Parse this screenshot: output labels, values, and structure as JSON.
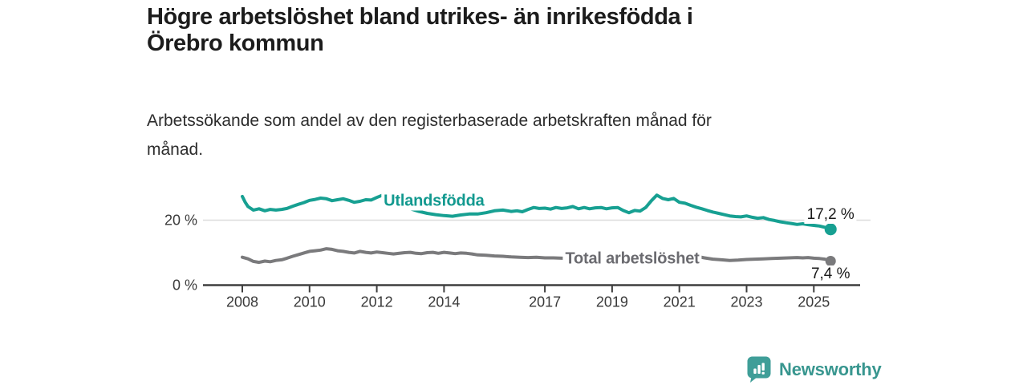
{
  "title": {
    "lines": [
      "Högre arbetslöshet bland utrikes- än inrikesfödda i",
      "Örebro kommun"
    ]
  },
  "subtitle": {
    "lines": [
      "Arbetssökande som andel av den registerbaserade arbetskraften månad för",
      "månad."
    ]
  },
  "footer": {
    "brand": "Newsworthy",
    "logo_icon": "bar-chart-speech-bubble-icon"
  },
  "colors": {
    "accent_teal": "#17a092",
    "line_gray": "#7a7a7c",
    "label_gray": "#6b6b70",
    "title_text": "#1c1c1c",
    "subtitle_text": "#2d2d2d",
    "axis_text": "#3a3a3a",
    "gridline": "#dcdcdc",
    "axis_line": "#3f3f3f",
    "logo_teal": "#3f9e98",
    "wordmark_teal": "#38968f",
    "background": "#ffffff"
  },
  "chart_data": {
    "type": "line",
    "x_unit": "decimal_year",
    "xlim": [
      2008.0,
      2025.58
    ],
    "ylim": [
      0,
      29
    ],
    "x_ticks": [
      2008,
      2010,
      2012,
      2014,
      2017,
      2019,
      2021,
      2023,
      2025
    ],
    "y_axis": {
      "ticks": [
        {
          "value": 0,
          "label": "0 %"
        },
        {
          "value": 20,
          "label": "20 %"
        }
      ]
    },
    "grid": "horizontal-at-20-only",
    "legend_position": "inline-labels-on-lines",
    "series": [
      {
        "name": "Utlandsfödda",
        "color": "#17a092",
        "label_color": "#12998f",
        "label_anchor": {
          "t": 2013.7,
          "value": 25.8
        },
        "end_label": "17,2 %",
        "end_value": 17.2,
        "end_label_placement": "above",
        "points": [
          [
            2008.0,
            27.3
          ],
          [
            2008.08,
            25.6
          ],
          [
            2008.17,
            24.2
          ],
          [
            2008.33,
            23.1
          ],
          [
            2008.5,
            23.5
          ],
          [
            2008.67,
            22.9
          ],
          [
            2008.83,
            23.3
          ],
          [
            2009.0,
            23.1
          ],
          [
            2009.17,
            23.3
          ],
          [
            2009.33,
            23.6
          ],
          [
            2009.5,
            24.3
          ],
          [
            2009.67,
            24.9
          ],
          [
            2009.83,
            25.4
          ],
          [
            2010.0,
            26.1
          ],
          [
            2010.17,
            26.4
          ],
          [
            2010.33,
            26.8
          ],
          [
            2010.5,
            26.6
          ],
          [
            2010.67,
            26.0
          ],
          [
            2010.83,
            26.3
          ],
          [
            2011.0,
            26.6
          ],
          [
            2011.17,
            26.1
          ],
          [
            2011.33,
            25.5
          ],
          [
            2011.5,
            25.8
          ],
          [
            2011.67,
            26.3
          ],
          [
            2011.83,
            26.2
          ],
          [
            2012.0,
            27.0
          ],
          [
            2012.17,
            27.7
          ],
          [
            2012.33,
            27.3
          ],
          [
            2012.5,
            26.4
          ],
          [
            2012.67,
            25.3
          ],
          [
            2012.83,
            24.3
          ],
          [
            2013.0,
            23.5
          ],
          [
            2013.25,
            22.7
          ],
          [
            2013.5,
            22.1
          ],
          [
            2013.75,
            21.7
          ],
          [
            2014.0,
            21.4
          ],
          [
            2014.25,
            21.2
          ],
          [
            2014.5,
            21.6
          ],
          [
            2014.75,
            21.9
          ],
          [
            2015.0,
            21.9
          ],
          [
            2015.25,
            22.3
          ],
          [
            2015.5,
            22.9
          ],
          [
            2015.75,
            23.1
          ],
          [
            2016.0,
            22.7
          ],
          [
            2016.17,
            22.9
          ],
          [
            2016.33,
            22.6
          ],
          [
            2016.5,
            23.3
          ],
          [
            2016.67,
            23.9
          ],
          [
            2016.83,
            23.6
          ],
          [
            2017.0,
            23.7
          ],
          [
            2017.17,
            23.4
          ],
          [
            2017.33,
            23.9
          ],
          [
            2017.5,
            23.6
          ],
          [
            2017.67,
            23.8
          ],
          [
            2017.83,
            24.2
          ],
          [
            2018.0,
            23.5
          ],
          [
            2018.17,
            23.9
          ],
          [
            2018.33,
            23.5
          ],
          [
            2018.5,
            23.8
          ],
          [
            2018.67,
            23.9
          ],
          [
            2018.83,
            23.5
          ],
          [
            2019.0,
            23.8
          ],
          [
            2019.17,
            23.9
          ],
          [
            2019.33,
            23.0
          ],
          [
            2019.5,
            22.3
          ],
          [
            2019.67,
            23.0
          ],
          [
            2019.83,
            22.8
          ],
          [
            2020.0,
            23.9
          ],
          [
            2020.17,
            26.0
          ],
          [
            2020.33,
            27.7
          ],
          [
            2020.5,
            26.7
          ],
          [
            2020.67,
            26.3
          ],
          [
            2020.83,
            26.7
          ],
          [
            2021.0,
            25.5
          ],
          [
            2021.17,
            25.2
          ],
          [
            2021.33,
            24.6
          ],
          [
            2021.5,
            24.0
          ],
          [
            2021.67,
            23.5
          ],
          [
            2021.83,
            23.0
          ],
          [
            2022.0,
            22.5
          ],
          [
            2022.17,
            22.1
          ],
          [
            2022.33,
            21.7
          ],
          [
            2022.5,
            21.3
          ],
          [
            2022.67,
            21.1
          ],
          [
            2022.83,
            21.0
          ],
          [
            2023.0,
            21.3
          ],
          [
            2023.17,
            20.9
          ],
          [
            2023.33,
            20.6
          ],
          [
            2023.5,
            20.8
          ],
          [
            2023.67,
            20.2
          ],
          [
            2023.83,
            19.9
          ],
          [
            2024.0,
            19.5
          ],
          [
            2024.17,
            19.2
          ],
          [
            2024.33,
            19.0
          ],
          [
            2024.5,
            18.7
          ],
          [
            2024.67,
            18.9
          ],
          [
            2024.83,
            18.6
          ],
          [
            2025.0,
            18.4
          ],
          [
            2025.17,
            18.2
          ],
          [
            2025.33,
            17.8
          ],
          [
            2025.5,
            17.2
          ]
        ]
      },
      {
        "name": "Total arbetslöshet",
        "color": "#7a7a7c",
        "label_color": "#6b6b70",
        "label_anchor": {
          "t": 2019.6,
          "value": 8.1
        },
        "end_label": "7,4 %",
        "end_value": 7.4,
        "end_label_placement": "below",
        "points": [
          [
            2008.0,
            8.6
          ],
          [
            2008.17,
            8.1
          ],
          [
            2008.33,
            7.3
          ],
          [
            2008.5,
            7.0
          ],
          [
            2008.67,
            7.4
          ],
          [
            2008.83,
            7.2
          ],
          [
            2009.0,
            7.6
          ],
          [
            2009.17,
            7.8
          ],
          [
            2009.33,
            8.3
          ],
          [
            2009.5,
            8.9
          ],
          [
            2009.67,
            9.4
          ],
          [
            2009.83,
            9.9
          ],
          [
            2010.0,
            10.4
          ],
          [
            2010.17,
            10.6
          ],
          [
            2010.33,
            10.8
          ],
          [
            2010.5,
            11.2
          ],
          [
            2010.67,
            11.0
          ],
          [
            2010.83,
            10.6
          ],
          [
            2011.0,
            10.4
          ],
          [
            2011.17,
            10.1
          ],
          [
            2011.33,
            9.9
          ],
          [
            2011.5,
            10.4
          ],
          [
            2011.67,
            10.1
          ],
          [
            2011.83,
            9.9
          ],
          [
            2012.0,
            10.2
          ],
          [
            2012.17,
            10.0
          ],
          [
            2012.33,
            9.8
          ],
          [
            2012.5,
            9.6
          ],
          [
            2012.67,
            9.8
          ],
          [
            2012.83,
            10.0
          ],
          [
            2013.0,
            10.1
          ],
          [
            2013.17,
            9.8
          ],
          [
            2013.33,
            9.7
          ],
          [
            2013.5,
            10.0
          ],
          [
            2013.67,
            10.1
          ],
          [
            2013.83,
            9.8
          ],
          [
            2014.0,
            10.1
          ],
          [
            2014.17,
            9.9
          ],
          [
            2014.33,
            9.7
          ],
          [
            2014.5,
            9.9
          ],
          [
            2014.67,
            9.8
          ],
          [
            2014.83,
            9.6
          ],
          [
            2015.0,
            9.3
          ],
          [
            2015.25,
            9.2
          ],
          [
            2015.5,
            9.0
          ],
          [
            2015.75,
            8.9
          ],
          [
            2016.0,
            8.7
          ],
          [
            2016.25,
            8.6
          ],
          [
            2016.5,
            8.5
          ],
          [
            2016.75,
            8.6
          ],
          [
            2017.0,
            8.4
          ],
          [
            2017.25,
            8.4
          ],
          [
            2017.5,
            8.3
          ],
          [
            2017.75,
            8.2
          ],
          [
            2018.0,
            8.1
          ],
          [
            2018.25,
            8.2
          ],
          [
            2018.5,
            8.0
          ],
          [
            2018.75,
            7.9
          ],
          [
            2019.0,
            7.9
          ],
          [
            2019.25,
            7.8
          ],
          [
            2019.5,
            7.8
          ],
          [
            2019.75,
            7.9
          ],
          [
            2020.0,
            8.4
          ],
          [
            2020.25,
            9.9
          ],
          [
            2020.42,
            10.4
          ],
          [
            2020.58,
            10.2
          ],
          [
            2020.83,
            10.0
          ],
          [
            2021.0,
            9.7
          ],
          [
            2021.25,
            9.3
          ],
          [
            2021.5,
            8.9
          ],
          [
            2021.75,
            8.4
          ],
          [
            2022.0,
            8.0
          ],
          [
            2022.25,
            7.8
          ],
          [
            2022.5,
            7.6
          ],
          [
            2022.75,
            7.7
          ],
          [
            2023.0,
            7.9
          ],
          [
            2023.25,
            8.0
          ],
          [
            2023.5,
            8.1
          ],
          [
            2023.75,
            8.2
          ],
          [
            2024.0,
            8.3
          ],
          [
            2024.25,
            8.4
          ],
          [
            2024.5,
            8.5
          ],
          [
            2024.67,
            8.4
          ],
          [
            2024.83,
            8.5
          ],
          [
            2025.0,
            8.3
          ],
          [
            2025.17,
            8.2
          ],
          [
            2025.33,
            8.0
          ],
          [
            2025.5,
            7.4
          ]
        ]
      }
    ]
  }
}
